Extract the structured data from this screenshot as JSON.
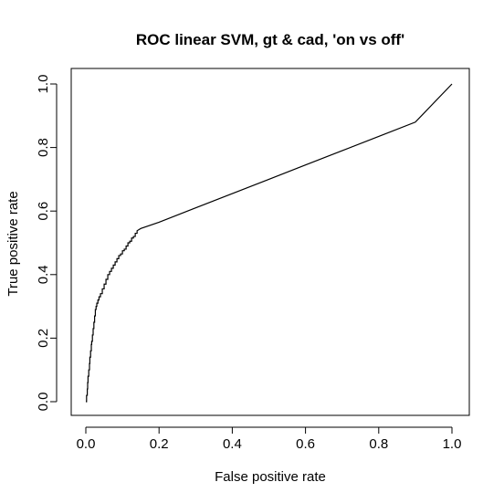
{
  "chart_data": {
    "type": "line",
    "title": "ROC linear SVM, gt & cad,  'on vs off'",
    "xlabel": "False positive rate",
    "ylabel": "True positive rate",
    "xlim": [
      0,
      1
    ],
    "ylim": [
      0,
      1
    ],
    "xticks": [
      "0.0",
      "0.2",
      "0.4",
      "0.6",
      "0.8",
      "1.0"
    ],
    "yticks": [
      "0.0",
      "0.2",
      "0.4",
      "0.6",
      "0.8",
      "1.0"
    ],
    "grid": false,
    "line_color": "#000000",
    "series": [
      {
        "x": [
          0.0,
          0.002,
          0.004,
          0.005,
          0.006,
          0.008,
          0.01,
          0.011,
          0.013,
          0.015,
          0.016,
          0.018,
          0.02,
          0.022,
          0.024,
          0.026,
          0.028,
          0.03,
          0.033,
          0.036,
          0.04,
          0.045,
          0.05,
          0.055,
          0.06,
          0.065,
          0.07,
          0.075,
          0.08,
          0.085,
          0.09,
          0.095,
          0.1,
          0.105,
          0.11,
          0.115,
          0.12,
          0.125,
          0.13,
          0.135,
          0.14,
          0.15,
          0.2,
          0.3,
          0.4,
          0.5,
          0.6,
          0.7,
          0.8,
          0.9,
          1.0
        ],
        "y": [
          0.0,
          0.02,
          0.04,
          0.06,
          0.08,
          0.1,
          0.12,
          0.14,
          0.16,
          0.18,
          0.19,
          0.21,
          0.23,
          0.25,
          0.27,
          0.29,
          0.3,
          0.31,
          0.32,
          0.33,
          0.34,
          0.355,
          0.37,
          0.385,
          0.4,
          0.41,
          0.42,
          0.43,
          0.44,
          0.45,
          0.46,
          0.465,
          0.475,
          0.48,
          0.49,
          0.5,
          0.505,
          0.515,
          0.52,
          0.53,
          0.538,
          0.545,
          0.565,
          0.61,
          0.655,
          0.7,
          0.745,
          0.79,
          0.835,
          0.88,
          1.0
        ]
      }
    ]
  }
}
